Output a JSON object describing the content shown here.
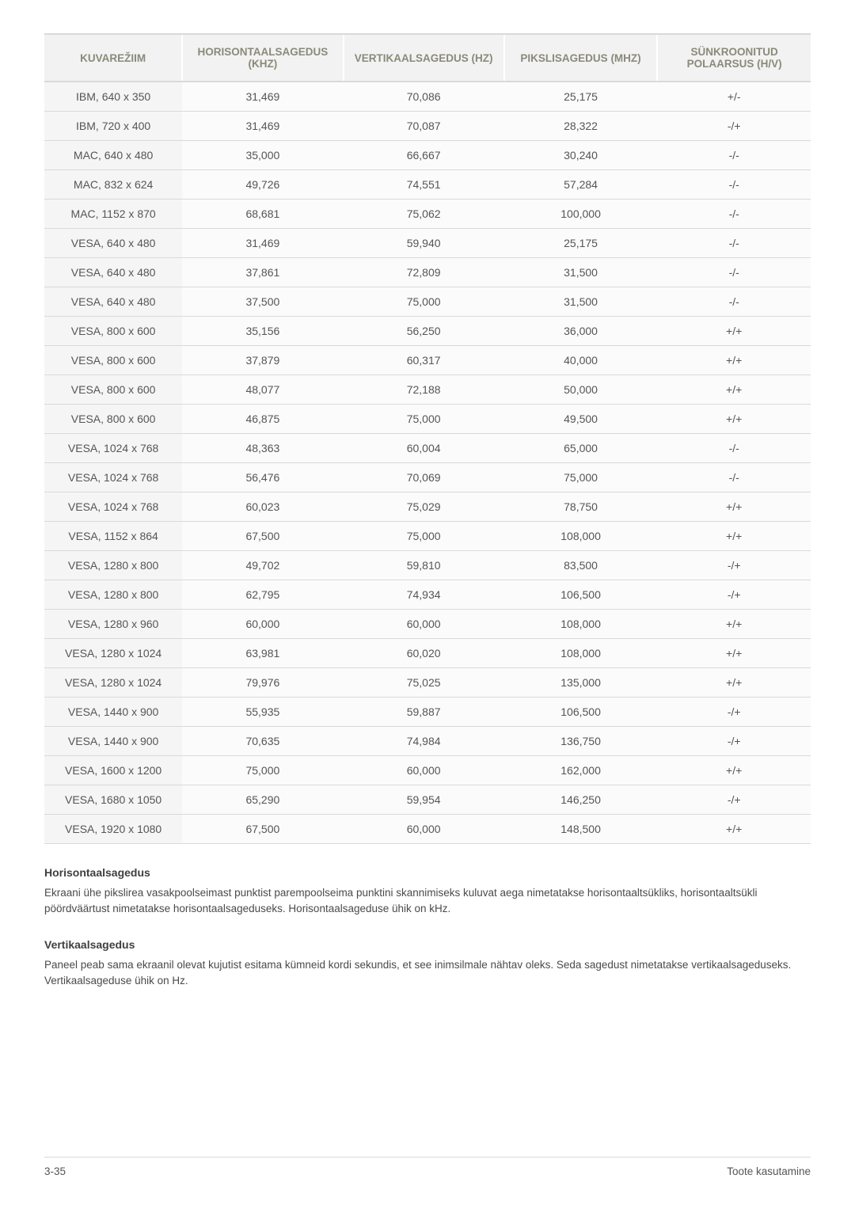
{
  "table": {
    "columns": [
      {
        "label": "KUVAREŽIIM",
        "width": "18%"
      },
      {
        "label": "HORISONTAALSAGEDUS (KHZ)",
        "width": "21%"
      },
      {
        "label": "VERTIKAALSAGEDUS (HZ)",
        "width": "21%"
      },
      {
        "label": "PIKSLISAGEDUS (MHZ)",
        "width": "20%"
      },
      {
        "label": "SÜNKROONITUD POLAARSUS (H/V)",
        "width": "20%"
      }
    ],
    "header_bg": "#f2f2f2",
    "header_color": "#8a8a7a",
    "header_fontsize": 13.5,
    "row_bg": "#fbfbfb",
    "row_first_col_bg": "#f5f5f5",
    "border_color": "#d9d9d9",
    "cell_fontsize": 14,
    "cell_color": "#555555",
    "rows": [
      [
        "IBM, 640 x 350",
        "31,469",
        "70,086",
        "25,175",
        "+/-"
      ],
      [
        "IBM, 720 x 400",
        "31,469",
        "70,087",
        "28,322",
        "-/+"
      ],
      [
        "MAC, 640 x 480",
        "35,000",
        "66,667",
        "30,240",
        "-/-"
      ],
      [
        "MAC, 832 x 624",
        "49,726",
        "74,551",
        "57,284",
        "-/-"
      ],
      [
        "MAC, 1152 x 870",
        "68,681",
        "75,062",
        "100,000",
        "-/-"
      ],
      [
        "VESA, 640 x 480",
        "31,469",
        "59,940",
        "25,175",
        "-/-"
      ],
      [
        "VESA, 640 x 480",
        "37,861",
        "72,809",
        "31,500",
        "-/-"
      ],
      [
        "VESA, 640 x 480",
        "37,500",
        "75,000",
        "31,500",
        "-/-"
      ],
      [
        "VESA, 800 x 600",
        "35,156",
        "56,250",
        "36,000",
        "+/+"
      ],
      [
        "VESA, 800 x 600",
        "37,879",
        "60,317",
        "40,000",
        "+/+"
      ],
      [
        "VESA, 800 x 600",
        "48,077",
        "72,188",
        "50,000",
        "+/+"
      ],
      [
        "VESA, 800 x 600",
        "46,875",
        "75,000",
        "49,500",
        "+/+"
      ],
      [
        "VESA, 1024 x 768",
        "48,363",
        "60,004",
        "65,000",
        "-/-"
      ],
      [
        "VESA, 1024 x 768",
        "56,476",
        "70,069",
        "75,000",
        "-/-"
      ],
      [
        "VESA, 1024 x 768",
        "60,023",
        "75,029",
        "78,750",
        "+/+"
      ],
      [
        "VESA, 1152 x 864",
        "67,500",
        "75,000",
        "108,000",
        "+/+"
      ],
      [
        "VESA, 1280 x 800",
        "49,702",
        "59,810",
        "83,500",
        "-/+"
      ],
      [
        "VESA, 1280 x 800",
        "62,795",
        "74,934",
        "106,500",
        "-/+"
      ],
      [
        "VESA, 1280 x 960",
        "60,000",
        "60,000",
        "108,000",
        "+/+"
      ],
      [
        "VESA, 1280 x 1024",
        "63,981",
        "60,020",
        "108,000",
        "+/+"
      ],
      [
        "VESA, 1280 x 1024",
        "79,976",
        "75,025",
        "135,000",
        "+/+"
      ],
      [
        "VESA, 1440 x 900",
        "55,935",
        "59,887",
        "106,500",
        "-/+"
      ],
      [
        "VESA, 1440 x 900",
        "70,635",
        "74,984",
        "136,750",
        "-/+"
      ],
      [
        "VESA, 1600 x 1200",
        "75,000",
        "60,000",
        "162,000",
        "+/+"
      ],
      [
        "VESA, 1680 x 1050",
        "65,290",
        "59,954",
        "146,250",
        "-/+"
      ],
      [
        "VESA, 1920 x 1080",
        "67,500",
        "60,000",
        "148,500",
        "+/+"
      ]
    ]
  },
  "sections": {
    "h1_heading": "Horisontaalsagedus",
    "h1_body": "Ekraani ühe pikslirea vasakpoolseimast punktist parempoolseima punktini skannimiseks kuluvat aega nimetatakse horisontaaltsükliks, horisontaaltsükli pöördväärtust nimetatakse horisontaalsageduseks. Horisontaalsageduse ühik on kHz.",
    "v1_heading": "Vertikaalsagedus",
    "v1_body": "Paneel peab sama ekraanil olevat kujutist esitama kümneid kordi sekundis, et see inimsilmale nähtav oleks. Seda sagedust nimetatakse vertikaalsageduseks. Vertikaalsageduse ühik on Hz.",
    "heading_fontsize": 14,
    "heading_color": "#3f3f3f",
    "body_fontsize": 13.5,
    "body_color": "#4a4a4a"
  },
  "footer": {
    "left": "3-35",
    "right": "Toote kasutamine",
    "border_color": "#d9d9d9",
    "fontsize": 13.5,
    "color": "#555555"
  }
}
